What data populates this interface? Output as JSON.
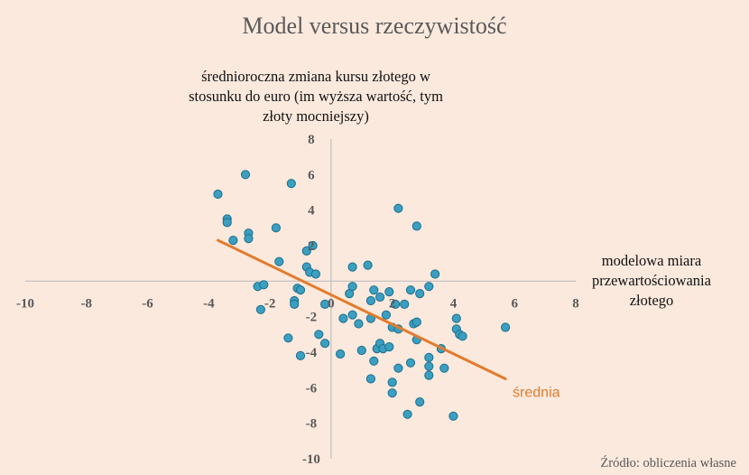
{
  "chart_data": {
    "type": "scatter",
    "title": "Model versus rzeczywistość",
    "ylabel": "średnioroczna zmiana kursu złotego w stosunku do euro (im wyższa wartość, tym złoty mocniejszy)",
    "xlabel": "modelowa miara przewartościowania złotego",
    "xlim": [
      -10,
      8
    ],
    "ylim": [
      -10,
      8
    ],
    "x_ticks": [
      -10,
      -8,
      -6,
      -4,
      -2,
      0,
      2,
      4,
      6,
      8
    ],
    "y_ticks": [
      -10,
      -8,
      -6,
      -4,
      -2,
      0,
      2,
      4,
      6,
      8
    ],
    "grid": false,
    "source": "Źródło: obliczenia własne",
    "colors": {
      "points": "#3a9fc0",
      "point_edge": "#1f6f8d",
      "trend": "#e37b2c",
      "axis": "#bfbfbf"
    },
    "trend": {
      "label": "średnia",
      "x": [
        -3.7,
        5.7
      ],
      "y": [
        2.3,
        -5.5
      ]
    },
    "points": [
      [
        -2.8,
        6.0
      ],
      [
        -1.3,
        5.5
      ],
      [
        -3.7,
        4.9
      ],
      [
        -3.4,
        3.5
      ],
      [
        -3.4,
        3.3
      ],
      [
        -3.2,
        2.3
      ],
      [
        -2.7,
        2.7
      ],
      [
        -2.7,
        2.4
      ],
      [
        -1.8,
        3.0
      ],
      [
        -1.7,
        1.1
      ],
      [
        -0.8,
        1.7
      ],
      [
        -0.8,
        0.8
      ],
      [
        -0.7,
        0.5
      ],
      [
        -0.5,
        0.4
      ],
      [
        -0.6,
        2.0
      ],
      [
        -1.1,
        -0.4
      ],
      [
        -1.0,
        -0.5
      ],
      [
        -1.2,
        -1.1
      ],
      [
        -1.2,
        -1.3
      ],
      [
        -2.4,
        -0.3
      ],
      [
        -2.2,
        -0.2
      ],
      [
        -2.3,
        -1.6
      ],
      [
        -1.4,
        -3.2
      ],
      [
        -1.0,
        -4.2
      ],
      [
        -0.4,
        -3.0
      ],
      [
        -0.2,
        -3.5
      ],
      [
        -0.2,
        -1.3
      ],
      [
        0.3,
        -4.1
      ],
      [
        0.4,
        -2.1
      ],
      [
        0.7,
        -1.9
      ],
      [
        0.6,
        -0.7
      ],
      [
        0.7,
        -0.3
      ],
      [
        0.7,
        0.8
      ],
      [
        1.2,
        0.9
      ],
      [
        0.9,
        -2.4
      ],
      [
        1.0,
        -3.9
      ],
      [
        1.3,
        -2.1
      ],
      [
        1.3,
        -5.5
      ],
      [
        1.4,
        -4.5
      ],
      [
        1.5,
        -3.8
      ],
      [
        1.6,
        -3.5
      ],
      [
        1.4,
        -0.5
      ],
      [
        1.3,
        -1.1
      ],
      [
        1.6,
        -0.9
      ],
      [
        1.7,
        -3.8
      ],
      [
        1.8,
        -1.9
      ],
      [
        1.9,
        -3.7
      ],
      [
        1.9,
        -0.6
      ],
      [
        2.0,
        -5.7
      ],
      [
        2.0,
        -6.3
      ],
      [
        2.0,
        -2.6
      ],
      [
        2.1,
        -1.3
      ],
      [
        2.2,
        -2.7
      ],
      [
        2.2,
        -4.9
      ],
      [
        2.2,
        4.1
      ],
      [
        2.4,
        -1.3
      ],
      [
        2.5,
        -7.5
      ],
      [
        2.6,
        -4.6
      ],
      [
        2.6,
        -0.5
      ],
      [
        2.7,
        -2.4
      ],
      [
        2.8,
        -2.3
      ],
      [
        2.8,
        -3.3
      ],
      [
        2.8,
        3.1
      ],
      [
        2.9,
        -0.7
      ],
      [
        2.9,
        -6.8
      ],
      [
        3.2,
        -0.3
      ],
      [
        3.2,
        -4.3
      ],
      [
        3.2,
        -4.8
      ],
      [
        3.2,
        -5.3
      ],
      [
        3.4,
        0.4
      ],
      [
        3.6,
        -3.8
      ],
      [
        3.7,
        -4.9
      ],
      [
        4.0,
        -7.6
      ],
      [
        4.1,
        -2.7
      ],
      [
        4.1,
        -2.1
      ],
      [
        4.2,
        -3.0
      ],
      [
        4.3,
        -3.1
      ],
      [
        5.7,
        -2.6
      ]
    ]
  }
}
